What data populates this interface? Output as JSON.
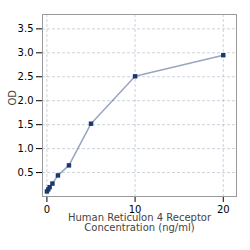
{
  "chart_data": {
    "type": "line",
    "xlabel": "Human Reticulon 4 Receptor\nConcentration (ng/ml)",
    "ylabel": "OD",
    "x": [
      0,
      0.156,
      0.312,
      0.625,
      1.25,
      2.5,
      5,
      10,
      20
    ],
    "values": [
      0.105,
      0.148,
      0.195,
      0.27,
      0.44,
      0.65,
      1.52,
      2.51,
      2.95
    ],
    "color": "#1a3870",
    "marker": "square",
    "xlim": [
      -0.5,
      21.5
    ],
    "xticks": [
      0,
      10,
      20
    ],
    "ylim": [
      0,
      3.8
    ],
    "yticks": [
      0.5,
      {
        "value": 1,
        "label": "1.0"
      },
      1.5,
      {
        "value": 2,
        "label": "2.0"
      },
      2.5,
      {
        "value": 3,
        "label": "3.0"
      },
      3.5
    ],
    "grid": true
  }
}
